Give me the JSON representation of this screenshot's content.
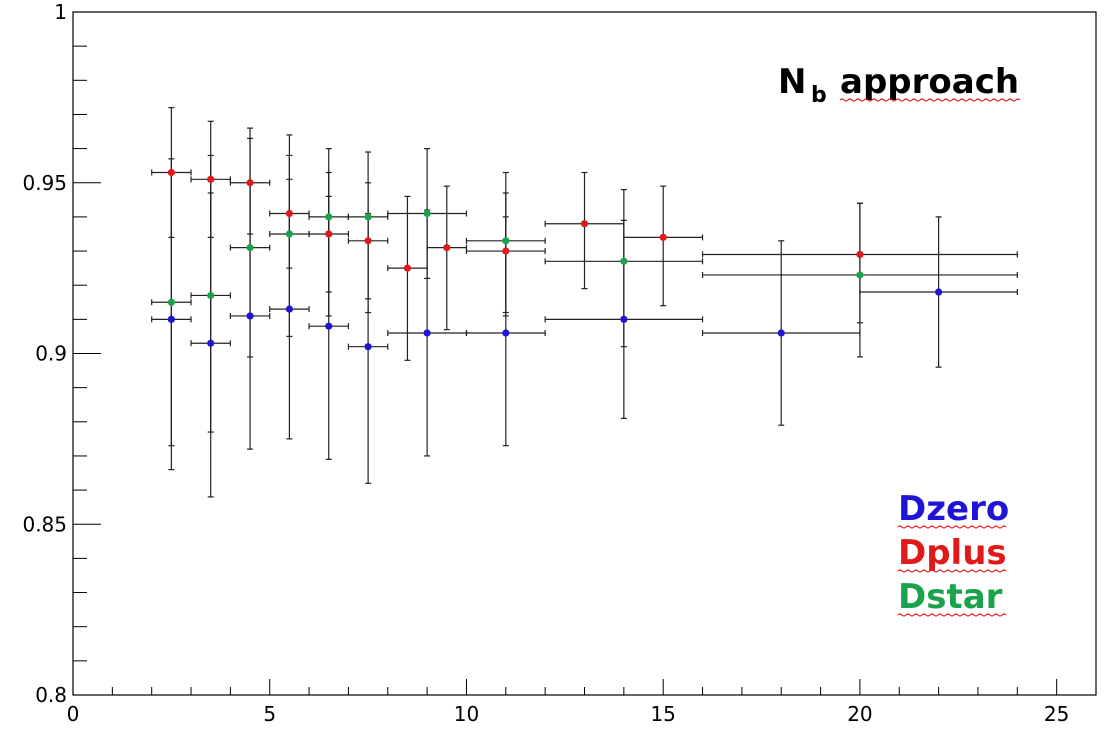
{
  "chart_data": {
    "type": "scatter",
    "title": "N",
    "title_subscript": "b",
    "title_rest": "approach",
    "xlim": [
      0,
      26
    ],
    "ylim": [
      0.8,
      1.0
    ],
    "x_ticks": [
      0,
      5,
      10,
      15,
      20,
      25
    ],
    "x_tick_labels": [
      "0",
      "5",
      "10",
      "15",
      "20",
      "25"
    ],
    "y_ticks": [
      0.8,
      0.85,
      0.9,
      0.95,
      1.0
    ],
    "y_tick_labels": [
      "0.8",
      "0.85",
      "0.9",
      "0.95",
      "1"
    ],
    "grid": false,
    "legend_placement": "bottom-right",
    "series": [
      {
        "name": "Dzero",
        "color": "#1f14d6",
        "points": [
          {
            "x": 2.5,
            "y": 0.91,
            "xlo": 2.0,
            "xhi": 3.0,
            "ylo": 0.866,
            "yhi": 0.953
          },
          {
            "x": 3.5,
            "y": 0.903,
            "xlo": 3.0,
            "xhi": 4.0,
            "ylo": 0.858,
            "yhi": 0.947
          },
          {
            "x": 4.5,
            "y": 0.911,
            "xlo": 4.0,
            "xhi": 5.0,
            "ylo": 0.872,
            "yhi": 0.95
          },
          {
            "x": 5.5,
            "y": 0.913,
            "xlo": 5.0,
            "xhi": 6.0,
            "ylo": 0.875,
            "yhi": 0.951
          },
          {
            "x": 6.5,
            "y": 0.908,
            "xlo": 6.0,
            "xhi": 7.0,
            "ylo": 0.869,
            "yhi": 0.946
          },
          {
            "x": 7.5,
            "y": 0.902,
            "xlo": 7.0,
            "xhi": 8.0,
            "ylo": 0.862,
            "yhi": 0.941
          },
          {
            "x": 9.0,
            "y": 0.906,
            "xlo": 8.0,
            "xhi": 10.0,
            "ylo": 0.87,
            "yhi": 0.942
          },
          {
            "x": 11.0,
            "y": 0.906,
            "xlo": 10.0,
            "xhi": 12.0,
            "ylo": 0.873,
            "yhi": 0.94
          },
          {
            "x": 14.0,
            "y": 0.91,
            "xlo": 12.0,
            "xhi": 16.0,
            "ylo": 0.881,
            "yhi": 0.939
          },
          {
            "x": 18.0,
            "y": 0.906,
            "xlo": 16.0,
            "xhi": 20.0,
            "ylo": 0.879,
            "yhi": 0.933
          },
          {
            "x": 22.0,
            "y": 0.918,
            "xlo": 20.0,
            "xhi": 24.0,
            "ylo": 0.896,
            "yhi": 0.94
          }
        ]
      },
      {
        "name": "Dplus",
        "color": "#e01a1a",
        "points": [
          {
            "x": 2.5,
            "y": 0.953,
            "xlo": 2.0,
            "xhi": 3.0,
            "ylo": 0.934,
            "yhi": 0.972
          },
          {
            "x": 3.5,
            "y": 0.951,
            "xlo": 3.0,
            "xhi": 4.0,
            "ylo": 0.934,
            "yhi": 0.968
          },
          {
            "x": 4.5,
            "y": 0.95,
            "xlo": 4.0,
            "xhi": 5.0,
            "ylo": 0.935,
            "yhi": 0.966
          },
          {
            "x": 5.5,
            "y": 0.941,
            "xlo": 5.0,
            "xhi": 6.0,
            "ylo": 0.925,
            "yhi": 0.958
          },
          {
            "x": 6.5,
            "y": 0.935,
            "xlo": 6.0,
            "xhi": 7.0,
            "ylo": 0.918,
            "yhi": 0.953
          },
          {
            "x": 7.5,
            "y": 0.933,
            "xlo": 7.0,
            "xhi": 8.0,
            "ylo": 0.916,
            "yhi": 0.95
          },
          {
            "x": 8.5,
            "y": 0.925,
            "xlo": 8.0,
            "xhi": 9.0,
            "ylo": 0.898,
            "yhi": 0.946
          },
          {
            "x": 9.5,
            "y": 0.931,
            "xlo": 9.0,
            "xhi": 10.0,
            "ylo": 0.907,
            "yhi": 0.949
          },
          {
            "x": 11.0,
            "y": 0.93,
            "xlo": 10.0,
            "xhi": 12.0,
            "ylo": 0.912,
            "yhi": 0.947
          },
          {
            "x": 13.0,
            "y": 0.938,
            "xlo": 12.0,
            "xhi": 14.0,
            "ylo": 0.919,
            "yhi": 0.953
          },
          {
            "x": 15.0,
            "y": 0.934,
            "xlo": 14.0,
            "xhi": 16.0,
            "ylo": 0.914,
            "yhi": 0.949
          },
          {
            "x": 20.0,
            "y": 0.929,
            "xlo": 16.0,
            "xhi": 24.0,
            "ylo": 0.909,
            "yhi": 0.944
          }
        ]
      },
      {
        "name": "Dstar",
        "color": "#1aa34a",
        "points": [
          {
            "x": 2.5,
            "y": 0.915,
            "xlo": 2.0,
            "xhi": 3.0,
            "ylo": 0.873,
            "yhi": 0.957
          },
          {
            "x": 3.5,
            "y": 0.917,
            "xlo": 3.0,
            "xhi": 4.0,
            "ylo": 0.877,
            "yhi": 0.958
          },
          {
            "x": 4.5,
            "y": 0.931,
            "xlo": 4.0,
            "xhi": 5.0,
            "ylo": 0.899,
            "yhi": 0.963
          },
          {
            "x": 5.5,
            "y": 0.935,
            "xlo": 5.0,
            "xhi": 6.0,
            "ylo": 0.905,
            "yhi": 0.964
          },
          {
            "x": 6.5,
            "y": 0.94,
            "xlo": 6.0,
            "xhi": 7.0,
            "ylo": 0.911,
            "yhi": 0.96
          },
          {
            "x": 7.5,
            "y": 0.94,
            "xlo": 7.0,
            "xhi": 8.0,
            "ylo": 0.912,
            "yhi": 0.959
          },
          {
            "x": 9.0,
            "y": 0.941,
            "xlo": 8.0,
            "xhi": 10.0,
            "ylo": 0.922,
            "yhi": 0.96
          },
          {
            "x": 11.0,
            "y": 0.933,
            "xlo": 10.0,
            "xhi": 12.0,
            "ylo": 0.911,
            "yhi": 0.953
          },
          {
            "x": 14.0,
            "y": 0.927,
            "xlo": 12.0,
            "xhi": 16.0,
            "ylo": 0.902,
            "yhi": 0.948
          },
          {
            "x": 20.0,
            "y": 0.923,
            "xlo": 16.0,
            "xhi": 24.0,
            "ylo": 0.899,
            "yhi": 0.944
          }
        ]
      }
    ]
  }
}
